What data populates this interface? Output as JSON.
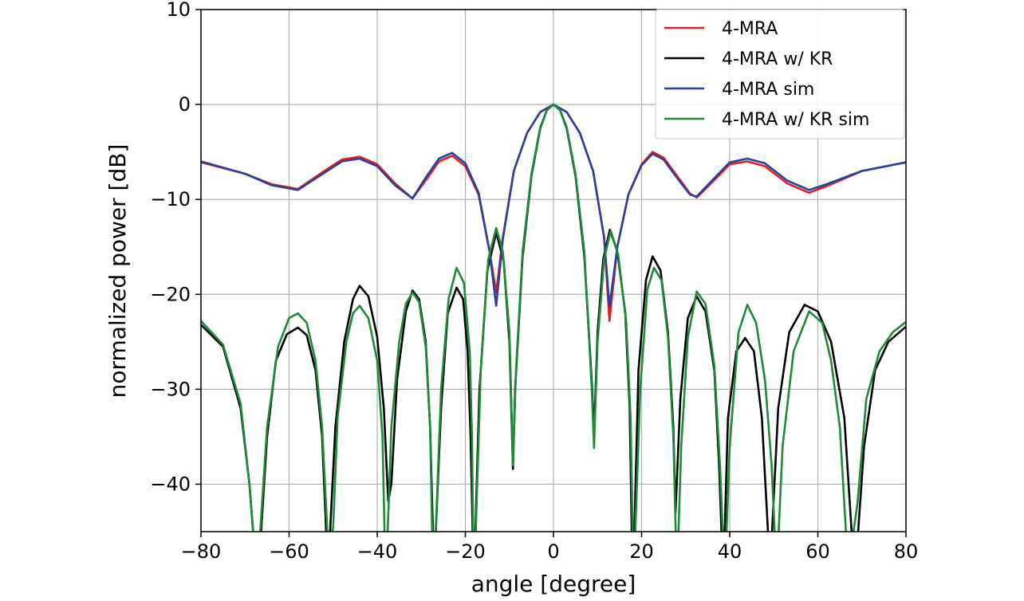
{
  "chart_data": {
    "type": "line",
    "title": "",
    "xlabel": "angle [degree]",
    "ylabel": "normalized power [dB]",
    "xlim": [
      -80,
      80
    ],
    "ylim": [
      -45,
      10
    ],
    "xticks": [
      -80,
      -60,
      -40,
      -20,
      0,
      20,
      40,
      60,
      80
    ],
    "yticks": [
      10,
      0,
      -10,
      -20,
      -30,
      -40
    ],
    "xtick_labels": [
      "−80",
      "−60",
      "−40",
      "−20",
      "0",
      "20",
      "40",
      "60",
      "80"
    ],
    "ytick_labels": [
      "10",
      "0",
      "−10",
      "−20",
      "−30",
      "−40"
    ],
    "grid": true,
    "legend_position": "top-right",
    "series": [
      {
        "name": "4-MRA",
        "color": "#e01e1e",
        "points": [
          [
            -80,
            -6.1
          ],
          [
            -70,
            -7.3
          ],
          [
            -64,
            -8.4
          ],
          [
            -58,
            -8.9
          ],
          [
            -52,
            -7.0
          ],
          [
            -48,
            -5.8
          ],
          [
            -44,
            -5.5
          ],
          [
            -40,
            -6.3
          ],
          [
            -36,
            -8.3
          ],
          [
            -32,
            -9.9
          ],
          [
            -29,
            -8.0
          ],
          [
            -26,
            -6.0
          ],
          [
            -23,
            -5.4
          ],
          [
            -20,
            -6.5
          ],
          [
            -17,
            -9.5
          ],
          [
            -14.5,
            -15.5
          ],
          [
            -13,
            -19.8
          ],
          [
            -11.5,
            -14.0
          ],
          [
            -9,
            -7.0
          ],
          [
            -6,
            -3.0
          ],
          [
            -3,
            -0.8
          ],
          [
            0,
            0
          ],
          [
            3,
            -0.8
          ],
          [
            6,
            -3.0
          ],
          [
            9,
            -7.0
          ],
          [
            11.5,
            -14.0
          ],
          [
            12.7,
            -22.8
          ],
          [
            14.5,
            -15.0
          ],
          [
            17,
            -9.5
          ],
          [
            20,
            -6.3
          ],
          [
            22.5,
            -5.0
          ],
          [
            25,
            -5.6
          ],
          [
            28,
            -7.5
          ],
          [
            31,
            -9.4
          ],
          [
            32.5,
            -9.8
          ],
          [
            36,
            -8.2
          ],
          [
            40,
            -6.3
          ],
          [
            44,
            -6.0
          ],
          [
            48,
            -6.5
          ],
          [
            53,
            -8.3
          ],
          [
            58,
            -9.3
          ],
          [
            62,
            -8.6
          ],
          [
            70,
            -7.0
          ],
          [
            80,
            -6.1
          ]
        ]
      },
      {
        "name": "4-MRA w/ KR",
        "color": "#000000",
        "points": [
          [
            -80,
            -23.2
          ],
          [
            -75,
            -25.5
          ],
          [
            -71,
            -32
          ],
          [
            -69,
            -40
          ],
          [
            -68,
            -46
          ],
          [
            -66.5,
            -46
          ],
          [
            -65,
            -35
          ],
          [
            -63,
            -27
          ],
          [
            -60.5,
            -24.2
          ],
          [
            -58,
            -23.5
          ],
          [
            -56,
            -24.3
          ],
          [
            -54,
            -28
          ],
          [
            -52.5,
            -35
          ],
          [
            -51.5,
            -46
          ],
          [
            -50.8,
            -46
          ],
          [
            -49.5,
            -34
          ],
          [
            -47.5,
            -25
          ],
          [
            -45.5,
            -20.5
          ],
          [
            -44,
            -19.1
          ],
          [
            -42,
            -20.2
          ],
          [
            -40,
            -24.5
          ],
          [
            -38.5,
            -32
          ],
          [
            -37.5,
            -41.8
          ],
          [
            -36.8,
            -40
          ],
          [
            -35.5,
            -29
          ],
          [
            -33.5,
            -21.8
          ],
          [
            -32,
            -19.6
          ],
          [
            -30.5,
            -20.5
          ],
          [
            -29,
            -25
          ],
          [
            -28,
            -34
          ],
          [
            -27.3,
            -46
          ],
          [
            -26.8,
            -46
          ],
          [
            -25.5,
            -32
          ],
          [
            -24,
            -22
          ],
          [
            -22,
            -19.3
          ],
          [
            -20.5,
            -20.5
          ],
          [
            -19.5,
            -26
          ],
          [
            -18.8,
            -35
          ],
          [
            -18.3,
            -46
          ],
          [
            -17.8,
            -46
          ],
          [
            -16.8,
            -30
          ],
          [
            -15,
            -17.5
          ],
          [
            -13,
            -13.5
          ],
          [
            -11.3,
            -16.5
          ],
          [
            -10,
            -25
          ],
          [
            -9.2,
            -38.4
          ],
          [
            -8.7,
            -30
          ],
          [
            -7,
            -16
          ],
          [
            -5,
            -7.5
          ],
          [
            -3,
            -2.5
          ],
          [
            -1.5,
            -0.6
          ],
          [
            0,
            0
          ],
          [
            1.5,
            -0.6
          ],
          [
            3,
            -2.5
          ],
          [
            5,
            -7.5
          ],
          [
            7,
            -16
          ],
          [
            8.8,
            -30
          ],
          [
            9.2,
            -35.0
          ],
          [
            10,
            -24
          ],
          [
            11.3,
            -16.3
          ],
          [
            12.8,
            -13.2
          ],
          [
            14.5,
            -15.5
          ],
          [
            16.3,
            -22
          ],
          [
            17.3,
            -32
          ],
          [
            17.8,
            -46
          ],
          [
            18.3,
            -46
          ],
          [
            19.3,
            -28
          ],
          [
            21,
            -18.5
          ],
          [
            22.5,
            -16
          ],
          [
            24.3,
            -17.5
          ],
          [
            26,
            -24
          ],
          [
            27.2,
            -34
          ],
          [
            27.7,
            -43
          ],
          [
            28.8,
            -31
          ],
          [
            30.5,
            -22.5
          ],
          [
            32.5,
            -20.2
          ],
          [
            34.5,
            -21.8
          ],
          [
            36.5,
            -28
          ],
          [
            37.6,
            -38
          ],
          [
            38.2,
            -46
          ],
          [
            38.8,
            -46
          ],
          [
            39.6,
            -33
          ],
          [
            41.5,
            -26
          ],
          [
            43.5,
            -24.6
          ],
          [
            45.5,
            -26
          ],
          [
            47.3,
            -33
          ],
          [
            48.8,
            -46
          ],
          [
            49.5,
            -46
          ],
          [
            51,
            -32
          ],
          [
            53.5,
            -24
          ],
          [
            57,
            -21.1
          ],
          [
            60,
            -21.8
          ],
          [
            63,
            -25
          ],
          [
            66,
            -33
          ],
          [
            67.8,
            -46
          ],
          [
            69,
            -46
          ],
          [
            70.5,
            -36
          ],
          [
            73,
            -28
          ],
          [
            76,
            -25
          ],
          [
            80,
            -23.4
          ]
        ]
      },
      {
        "name": "4-MRA sim",
        "color": "#2a3f9e",
        "points": [
          [
            -80,
            -6.0
          ],
          [
            -70,
            -7.3
          ],
          [
            -64,
            -8.5
          ],
          [
            -58,
            -9.0
          ],
          [
            -52,
            -7.2
          ],
          [
            -48,
            -6.0
          ],
          [
            -44,
            -5.7
          ],
          [
            -40,
            -6.5
          ],
          [
            -36,
            -8.5
          ],
          [
            -32,
            -9.9
          ],
          [
            -29,
            -7.7
          ],
          [
            -26,
            -5.7
          ],
          [
            -23,
            -5.1
          ],
          [
            -20,
            -6.2
          ],
          [
            -17,
            -9.3
          ],
          [
            -14.5,
            -15.5
          ],
          [
            -13,
            -21.2
          ],
          [
            -11.5,
            -14.2
          ],
          [
            -9,
            -7.0
          ],
          [
            -6,
            -3.0
          ],
          [
            -3,
            -0.8
          ],
          [
            0,
            0
          ],
          [
            3,
            -0.8
          ],
          [
            6,
            -3.0
          ],
          [
            9,
            -7.0
          ],
          [
            11.5,
            -14.0
          ],
          [
            12.7,
            -21.3
          ],
          [
            14.5,
            -15.0
          ],
          [
            17,
            -9.5
          ],
          [
            20,
            -6.4
          ],
          [
            22.5,
            -5.2
          ],
          [
            25,
            -5.8
          ],
          [
            28,
            -7.7
          ],
          [
            31,
            -9.5
          ],
          [
            32.5,
            -9.7
          ],
          [
            36,
            -8.0
          ],
          [
            40,
            -6.1
          ],
          [
            44,
            -5.7
          ],
          [
            48,
            -6.2
          ],
          [
            53,
            -8.0
          ],
          [
            58,
            -9.0
          ],
          [
            62,
            -8.4
          ],
          [
            70,
            -7.0
          ],
          [
            80,
            -6.1
          ]
        ]
      },
      {
        "name": "4-MRA w/ KR sim",
        "color": "#1e8a3a",
        "points": [
          [
            -80,
            -22.8
          ],
          [
            -75,
            -25.3
          ],
          [
            -71,
            -31.5
          ],
          [
            -69,
            -40
          ],
          [
            -68,
            -46
          ],
          [
            -66.7,
            -46
          ],
          [
            -65,
            -34
          ],
          [
            -62.5,
            -25.5
          ],
          [
            -60,
            -22.5
          ],
          [
            -58,
            -22.0
          ],
          [
            -56,
            -23
          ],
          [
            -54,
            -27
          ],
          [
            -52.5,
            -34
          ],
          [
            -51.2,
            -46
          ],
          [
            -50.6,
            -46
          ],
          [
            -50,
            -44.5
          ],
          [
            -49,
            -33
          ],
          [
            -47,
            -25
          ],
          [
            -45.5,
            -22
          ],
          [
            -44,
            -21.2
          ],
          [
            -42,
            -22.5
          ],
          [
            -40,
            -27
          ],
          [
            -38.8,
            -35
          ],
          [
            -38.3,
            -46
          ],
          [
            -37.7,
            -46
          ],
          [
            -36.8,
            -34
          ],
          [
            -35,
            -25
          ],
          [
            -33.5,
            -21
          ],
          [
            -32,
            -19.8
          ],
          [
            -30.5,
            -20.8
          ],
          [
            -29,
            -25.5
          ],
          [
            -28,
            -34
          ],
          [
            -27.5,
            -46
          ],
          [
            -26.8,
            -46
          ],
          [
            -25.5,
            -30
          ],
          [
            -23.8,
            -20.5
          ],
          [
            -22,
            -17.2
          ],
          [
            -20.3,
            -18.8
          ],
          [
            -19,
            -26
          ],
          [
            -18.5,
            -35
          ],
          [
            -18.2,
            -46
          ],
          [
            -17.7,
            -46
          ],
          [
            -16.5,
            -28
          ],
          [
            -14.8,
            -16.3
          ],
          [
            -13,
            -13.0
          ],
          [
            -11.5,
            -15.5
          ],
          [
            -10,
            -24
          ],
          [
            -9.2,
            -38
          ],
          [
            -8.5,
            -28
          ],
          [
            -7,
            -15.5
          ],
          [
            -5,
            -7.3
          ],
          [
            -3,
            -2.4
          ],
          [
            -1.5,
            -0.6
          ],
          [
            0,
            0
          ],
          [
            1.5,
            -0.6
          ],
          [
            3,
            -2.4
          ],
          [
            5,
            -7.3
          ],
          [
            7,
            -15.5
          ],
          [
            8.7,
            -30
          ],
          [
            9.2,
            -36.2
          ],
          [
            10,
            -25
          ],
          [
            11.5,
            -16.3
          ],
          [
            13,
            -13.3
          ],
          [
            14.7,
            -15.8
          ],
          [
            16.5,
            -23
          ],
          [
            17.5,
            -33
          ],
          [
            18,
            -46
          ],
          [
            18.5,
            -46
          ],
          [
            19.7,
            -30
          ],
          [
            21.3,
            -19.5
          ],
          [
            22.8,
            -17.2
          ],
          [
            24.5,
            -18.5
          ],
          [
            26,
            -24.5
          ],
          [
            27.2,
            -35
          ],
          [
            27.8,
            -46
          ],
          [
            28.3,
            -46
          ],
          [
            29,
            -36
          ],
          [
            30.5,
            -24.5
          ],
          [
            32.5,
            -19.7
          ],
          [
            34.5,
            -21
          ],
          [
            36.5,
            -27.5
          ],
          [
            37.8,
            -38
          ],
          [
            38.5,
            -46
          ],
          [
            39.2,
            -46
          ],
          [
            40,
            -36
          ],
          [
            42,
            -24
          ],
          [
            44,
            -21.1
          ],
          [
            46,
            -23
          ],
          [
            48,
            -29
          ],
          [
            49.5,
            -38
          ],
          [
            50.3,
            -46
          ],
          [
            51,
            -46
          ],
          [
            52,
            -36
          ],
          [
            54.5,
            -26
          ],
          [
            58,
            -21.8
          ],
          [
            61,
            -23.0
          ],
          [
            63,
            -27
          ],
          [
            65,
            -34
          ],
          [
            66.5,
            -46
          ],
          [
            67.8,
            -46
          ],
          [
            69,
            -42
          ],
          [
            71,
            -31
          ],
          [
            74,
            -26
          ],
          [
            77,
            -24
          ],
          [
            80,
            -22.9
          ]
        ]
      }
    ]
  }
}
